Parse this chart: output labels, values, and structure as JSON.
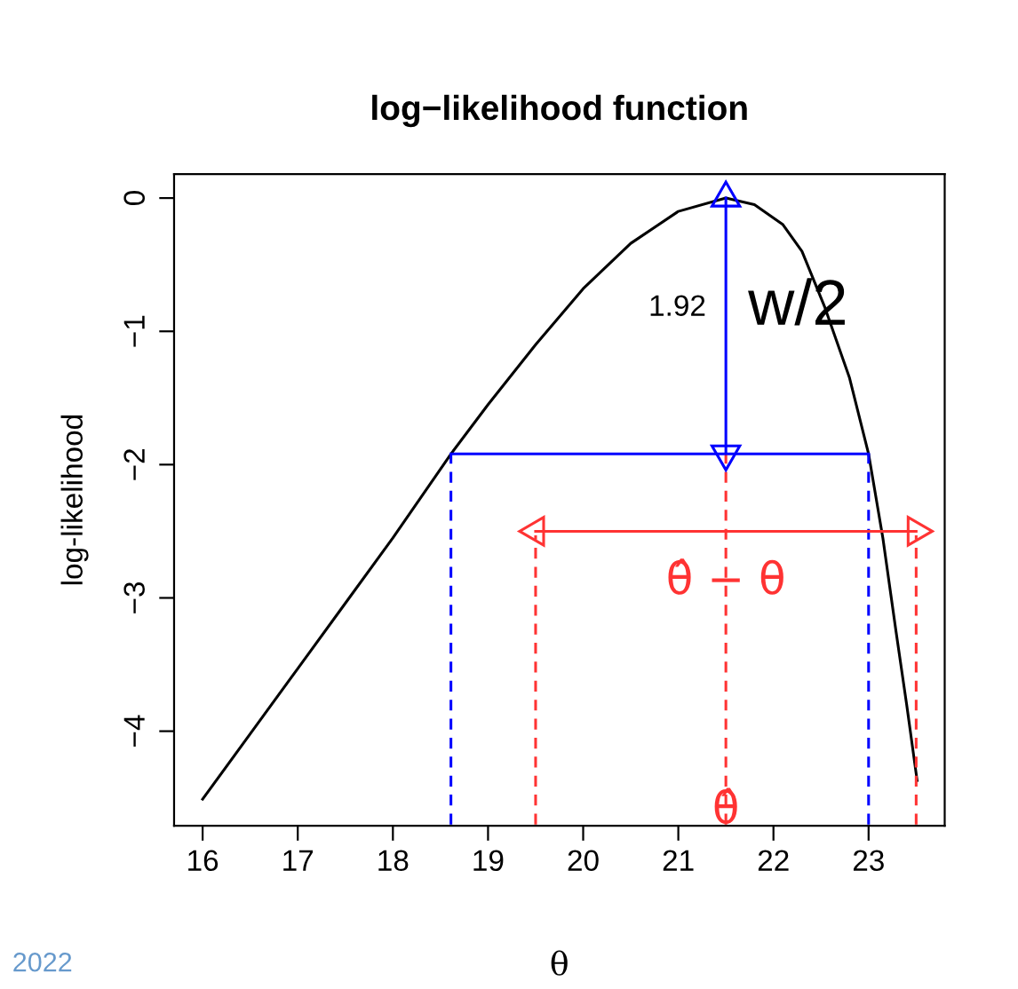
{
  "chart_data": {
    "type": "line",
    "title": "log−likelihood function",
    "xlabel": "θ",
    "ylabel": "log-likelihood",
    "xlim": [
      15.7,
      23.8
    ],
    "ylim": [
      -4.71,
      0.18
    ],
    "xticks": [
      16,
      17,
      18,
      19,
      20,
      21,
      22,
      23
    ],
    "yticks": [
      {
        "value": 0,
        "label": "0"
      },
      {
        "value": -1,
        "label": "−1"
      },
      {
        "value": -2,
        "label": "−2"
      },
      {
        "value": -3,
        "label": "−3"
      },
      {
        "value": -4,
        "label": "−4"
      }
    ],
    "series": [
      {
        "type": "line",
        "color": "#000000",
        "line_style": "solid",
        "x": [
          16.0,
          16.5,
          17.0,
          17.5,
          18.0,
          18.61,
          19.0,
          19.5,
          20.0,
          20.5,
          21.0,
          21.5,
          21.8,
          22.1,
          22.3,
          22.54,
          22.8,
          23.0,
          23.15,
          23.29,
          23.4,
          23.51
        ],
        "values": [
          -4.51,
          -4.02,
          -3.53,
          -3.04,
          -2.55,
          -1.92,
          -1.55,
          -1.1,
          -0.68,
          -0.34,
          -0.1,
          0,
          -0.05,
          -0.2,
          -0.4,
          -0.82,
          -1.35,
          -1.92,
          -2.55,
          -3.26,
          -3.8,
          -4.37
        ]
      },
      {
        "color": "#0000ff",
        "line_style": "solid",
        "x": [
          18.61,
          23.0
        ],
        "values": [
          -1.92,
          -1.92
        ]
      },
      {
        "color": "#0000ff",
        "line_style": "dashed",
        "x": [
          18.61,
          18.61
        ],
        "values": [
          -4.7,
          -1.92
        ]
      },
      {
        "color": "#0000ff",
        "line_style": "dashed",
        "x": [
          23.0,
          23.0
        ],
        "values": [
          -4.7,
          -1.92
        ]
      },
      {
        "color": "#ff3333",
        "line_style": "dashed",
        "x": [
          19.5,
          19.5
        ],
        "values": [
          -4.7,
          -2.53
        ]
      },
      {
        "color": "#ff3333",
        "line_style": "dashed",
        "x": [
          21.5,
          21.5
        ],
        "values": [
          -4.7,
          -1.92
        ]
      },
      {
        "color": "#ff3333",
        "line_style": "dashed",
        "x": [
          23.5,
          23.5
        ],
        "values": [
          -4.7,
          -2.53
        ]
      },
      {
        "type": "line",
        "color": "#0000ff",
        "line_style": "solid",
        "marker": "triangle",
        "x": [
          21.5,
          21.5
        ],
        "values": [
          -1.92,
          0
        ]
      },
      {
        "type": "line",
        "color": "#ff3333",
        "line_style": "solid",
        "marker": "triangle",
        "x": [
          19.5,
          23.5
        ],
        "values": [
          -2.5,
          -2.5
        ]
      }
    ],
    "annotations": [
      "1.92",
      "w/2",
      {
        "text": "θ̂ − θ",
        "x": 21.5,
        "y": -2.88
      },
      {
        "text": "θ̂",
        "x": 21.5,
        "y": -4.6
      },
      "2022"
    ]
  }
}
